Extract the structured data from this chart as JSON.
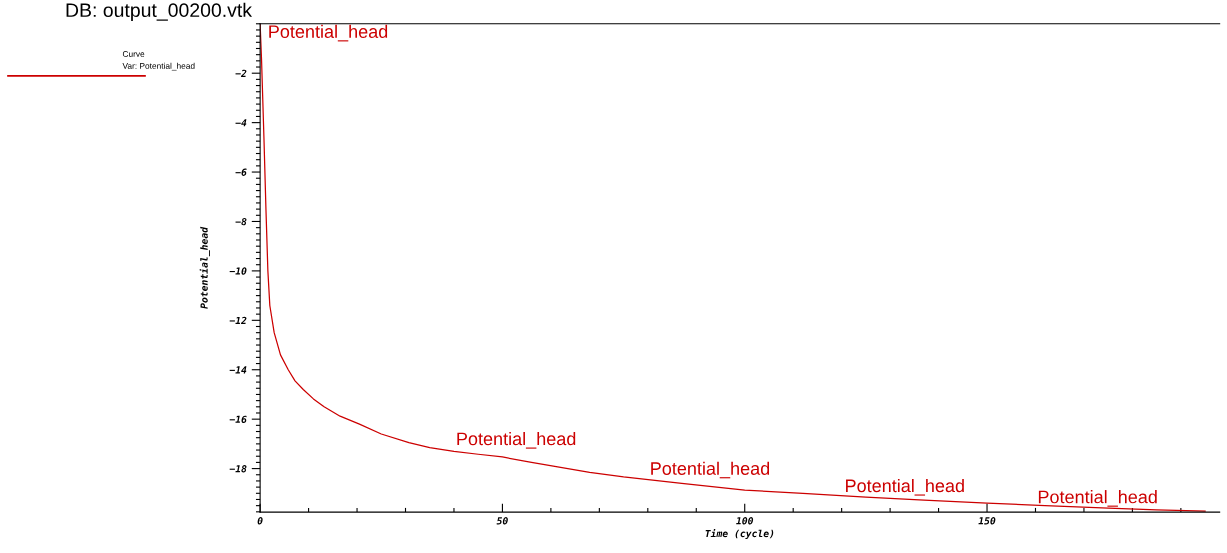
{
  "chart_data": {
    "type": "line",
    "title": "DB: output_00200.vtk",
    "xlabel": "Time (cycle)",
    "ylabel": "Potential_head",
    "legend_title": "Curve",
    "series": [
      {
        "name": "Var: Potential_head",
        "color": "#cc0000",
        "x": [
          0,
          0.3,
          0.8,
          1.2,
          1.6,
          2.0,
          2.9,
          4.2,
          5.8,
          7.2,
          8.9,
          11,
          13.2,
          16.5,
          20.5,
          25,
          30.7,
          35,
          40,
          45,
          50,
          56,
          62,
          68,
          75,
          87,
          100,
          112,
          125,
          137,
          150,
          162,
          175,
          185,
          195
        ],
        "values": [
          0,
          -1.5,
          -4.7,
          -7.5,
          -10,
          -11.4,
          -12.5,
          -13.4,
          -14,
          -14.45,
          -14.8,
          -15.18,
          -15.5,
          -15.88,
          -16.2,
          -16.6,
          -16.95,
          -17.15,
          -17.3,
          -17.42,
          -17.53,
          -17.75,
          -17.95,
          -18.15,
          -18.34,
          -18.6,
          -18.87,
          -19.0,
          -19.15,
          -19.28,
          -19.4,
          -19.5,
          -19.6,
          -19.67,
          -19.72
        ]
      }
    ],
    "xlim": [
      0,
      198
    ],
    "ylim": [
      -19.76,
      0
    ],
    "xticks": [
      0,
      50,
      100,
      150
    ],
    "yticks": [
      -18,
      -16,
      -14,
      -12,
      -10,
      -8,
      -6,
      -4,
      -2
    ],
    "grid": false,
    "legend": "top left",
    "marker": "none",
    "line_style": "solid",
    "annotations": [
      "Potential_head",
      {
        "text": "Potential_head",
        "x": 40.4,
        "y": -17.2
      },
      {
        "text": "Potential_head",
        "x": 80.4,
        "y": -18.4
      },
      {
        "text": "Potential_head",
        "x": 120.6,
        "y": -19.1
      },
      {
        "text": "Potential_head",
        "x": 160.4,
        "y": -19.55
      }
    ]
  }
}
